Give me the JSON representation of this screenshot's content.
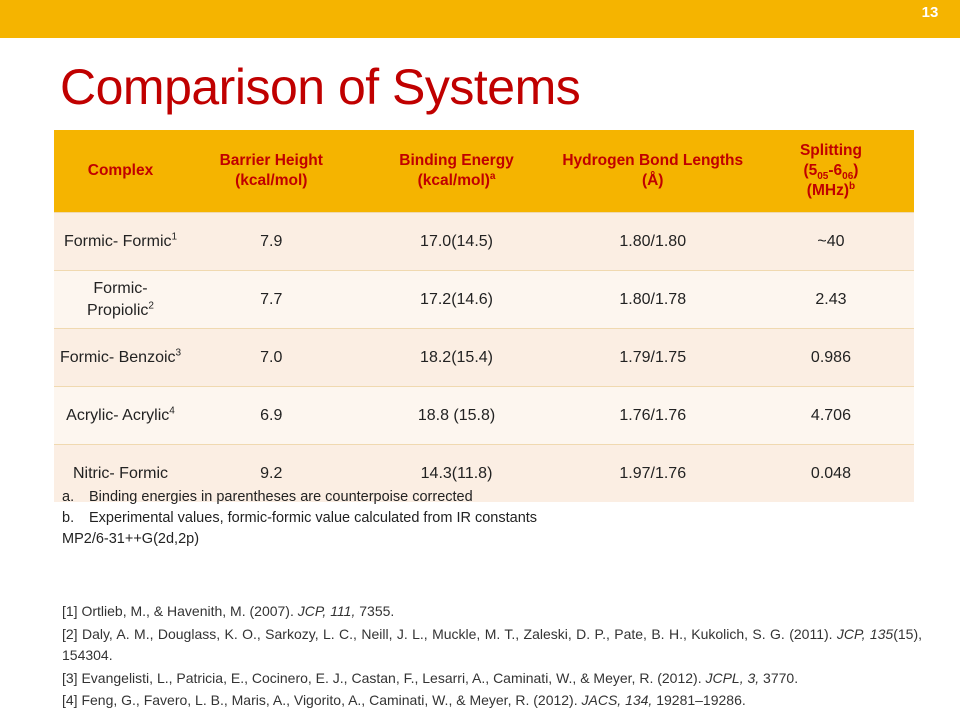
{
  "slide_number": "13",
  "title": "Comparison of Systems",
  "colors": {
    "accent": "#f5b400",
    "title": "#c00000",
    "header_text": "#c00000"
  },
  "table": {
    "headers": [
      "Complex",
      "Barrier Height (kcal/mol)",
      "Binding Energy (kcal/mol)",
      "Hydrogen Bond Lengths (Å)",
      "Splitting",
      "(MHz)"
    ],
    "header_splitting_parts": {
      "open": "(5",
      "sub1": "05",
      "mid": "-6",
      "sub2": "06",
      "close": ")"
    },
    "header_superscripts": {
      "binding": "a",
      "splitting": "b"
    },
    "rows": [
      {
        "complex": "Formic- Formic",
        "ref": "1",
        "barrier": "7.9",
        "binding": "17.0(14.5)",
        "hbond": "1.80/1.80",
        "splitting": "~40"
      },
      {
        "complex": "Formic- Propiolic",
        "ref": "2",
        "barrier": "7.7",
        "binding": "17.2(14.6)",
        "hbond": "1.80/1.78",
        "splitting": "2.43"
      },
      {
        "complex": "Formic- Benzoic",
        "ref": "3",
        "barrier": "7.0",
        "binding": "18.2(15.4)",
        "hbond": "1.79/1.75",
        "splitting": "0.986"
      },
      {
        "complex": "Acrylic- Acrylic",
        "ref": "4",
        "barrier": "6.9",
        "binding": "18.8 (15.8)",
        "hbond": "1.76/1.76",
        "splitting": "4.706"
      },
      {
        "complex": "Nitric- Formic",
        "ref": "",
        "barrier": "9.2",
        "binding": "14.3(11.8)",
        "hbond": "1.97/1.76",
        "splitting": "0.048"
      }
    ]
  },
  "notes": [
    {
      "label": "a.",
      "text": "Binding energies in parentheses are counterpoise corrected"
    },
    {
      "label": "b.",
      "text": "Experimental values, formic-formic value calculated from IR constants"
    }
  ],
  "method": "MP2/6-31++G(2d,2p)",
  "references": [
    {
      "pre": "[1] Ortlieb, M., & Havenith, M. (2007). ",
      "journal": "JCP, 111,",
      "post": " 7355."
    },
    {
      "pre": "[2] Daly, A. M., Douglass, K. O., Sarkozy, L. C., Neill, J. L., Muckle, M. T., Zaleski, D. P., Pate, B. H., Kukolich, S. G. (2011). ",
      "journal": "JCP, 135",
      "post": "(15), 154304."
    },
    {
      "pre": "[3] Evangelisti, L., Patricia, E., Cocinero, E. J., Castan, F., Lesarri, A., Caminati, W., & Meyer, R. (2012). ",
      "journal": "JCPL, 3,",
      "post": " 3770."
    },
    {
      "pre": "[4] Feng, G., Favero, L. B., Maris, A., Vigorito, A., Caminati, W., & Meyer, R. (2012). ",
      "journal": "JACS, 134,",
      "post": " 19281–19286."
    }
  ]
}
